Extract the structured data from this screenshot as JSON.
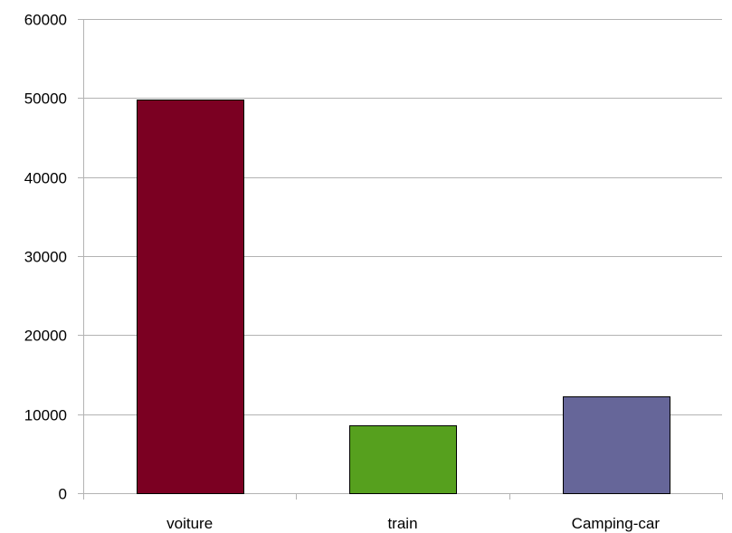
{
  "chart_data": {
    "type": "bar",
    "title": "",
    "xlabel": "",
    "ylabel": "",
    "categories": [
      "voiture",
      "train",
      "Camping-car"
    ],
    "values": [
      49800,
      8600,
      12200
    ],
    "colors": [
      "#7b0022",
      "#56a01e",
      "#666699"
    ],
    "ylim": [
      0,
      60000
    ],
    "yticks": [
      0,
      10000,
      20000,
      30000,
      40000,
      50000,
      60000
    ],
    "grid": true,
    "legend": "none"
  }
}
